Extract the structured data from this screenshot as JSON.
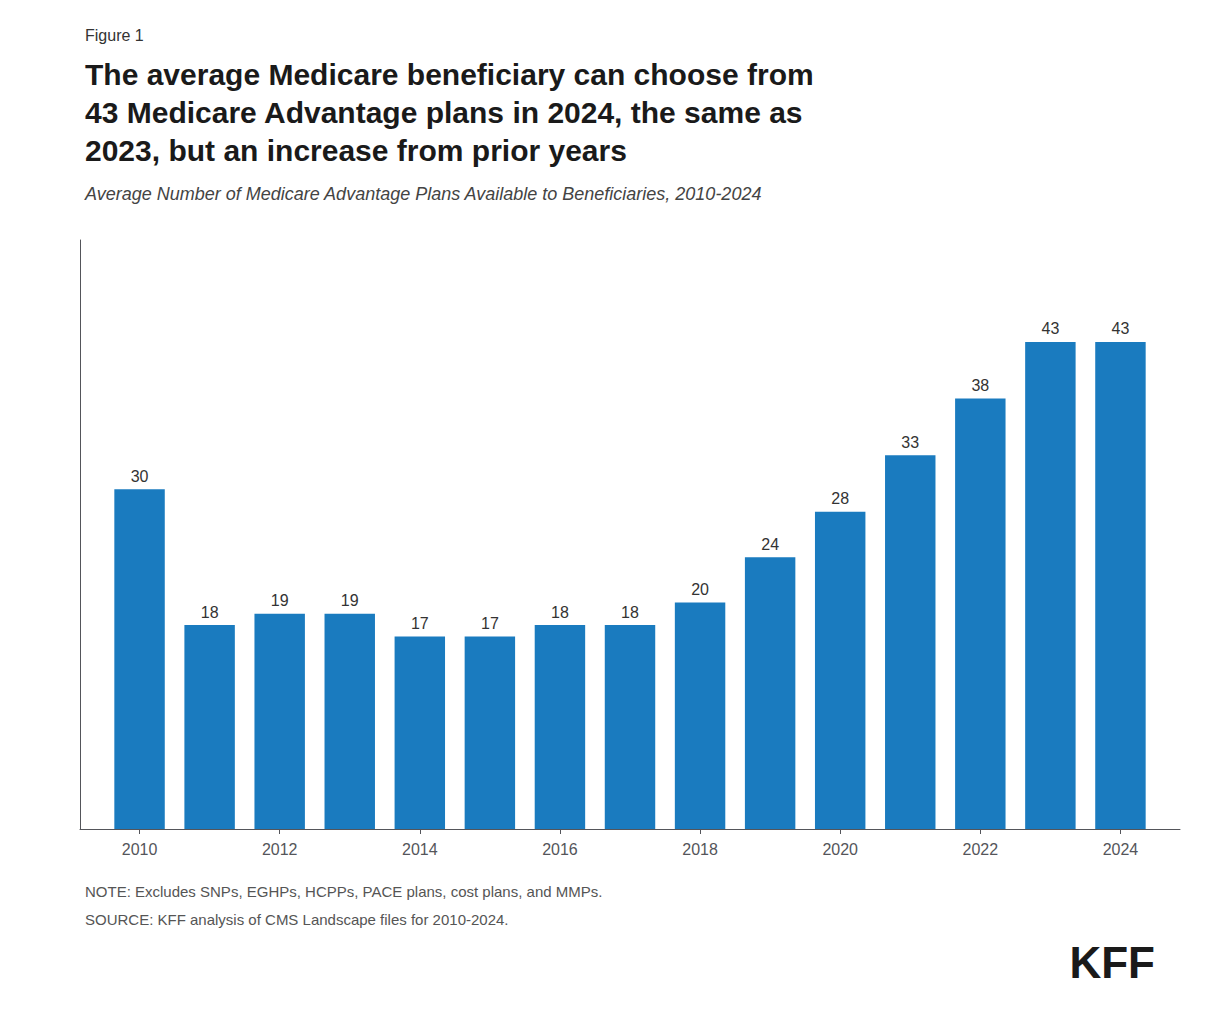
{
  "chart_data": {
    "type": "bar",
    "figure_label": "Figure 1",
    "title": "The average Medicare beneficiary can choose from\n43 Medicare Advantage plans in 2024, the same as\n2023, but an increase from prior years",
    "subtitle": "Average Number of Medicare Advantage Plans Available to Beneficiaries, 2010-2024",
    "notes": [
      "NOTE: Excludes SNPs, EGHPs, HCPPs, PACE plans, cost plans, and MMPs.",
      "SOURCE: KFF analysis of CMS Landscape files for 2010-2024."
    ],
    "logo": "KFF",
    "x": [
      2010,
      2011,
      2012,
      2013,
      2014,
      2015,
      2016,
      2017,
      2018,
      2019,
      2020,
      2021,
      2022,
      2023,
      2024
    ],
    "values": [
      30,
      18,
      19,
      19,
      17,
      17,
      18,
      18,
      20,
      24,
      28,
      33,
      38,
      43,
      43
    ],
    "color": "#1a7bbf",
    "xlim": [
      2009.15,
      2024.85
    ],
    "xticks": [
      2010,
      2012,
      2014,
      2016,
      2018,
      2020,
      2022,
      2024
    ],
    "ylim": [
      0,
      52
    ],
    "yticks": [],
    "tick_labels": "x",
    "grid": false,
    "data_labels": true
  }
}
